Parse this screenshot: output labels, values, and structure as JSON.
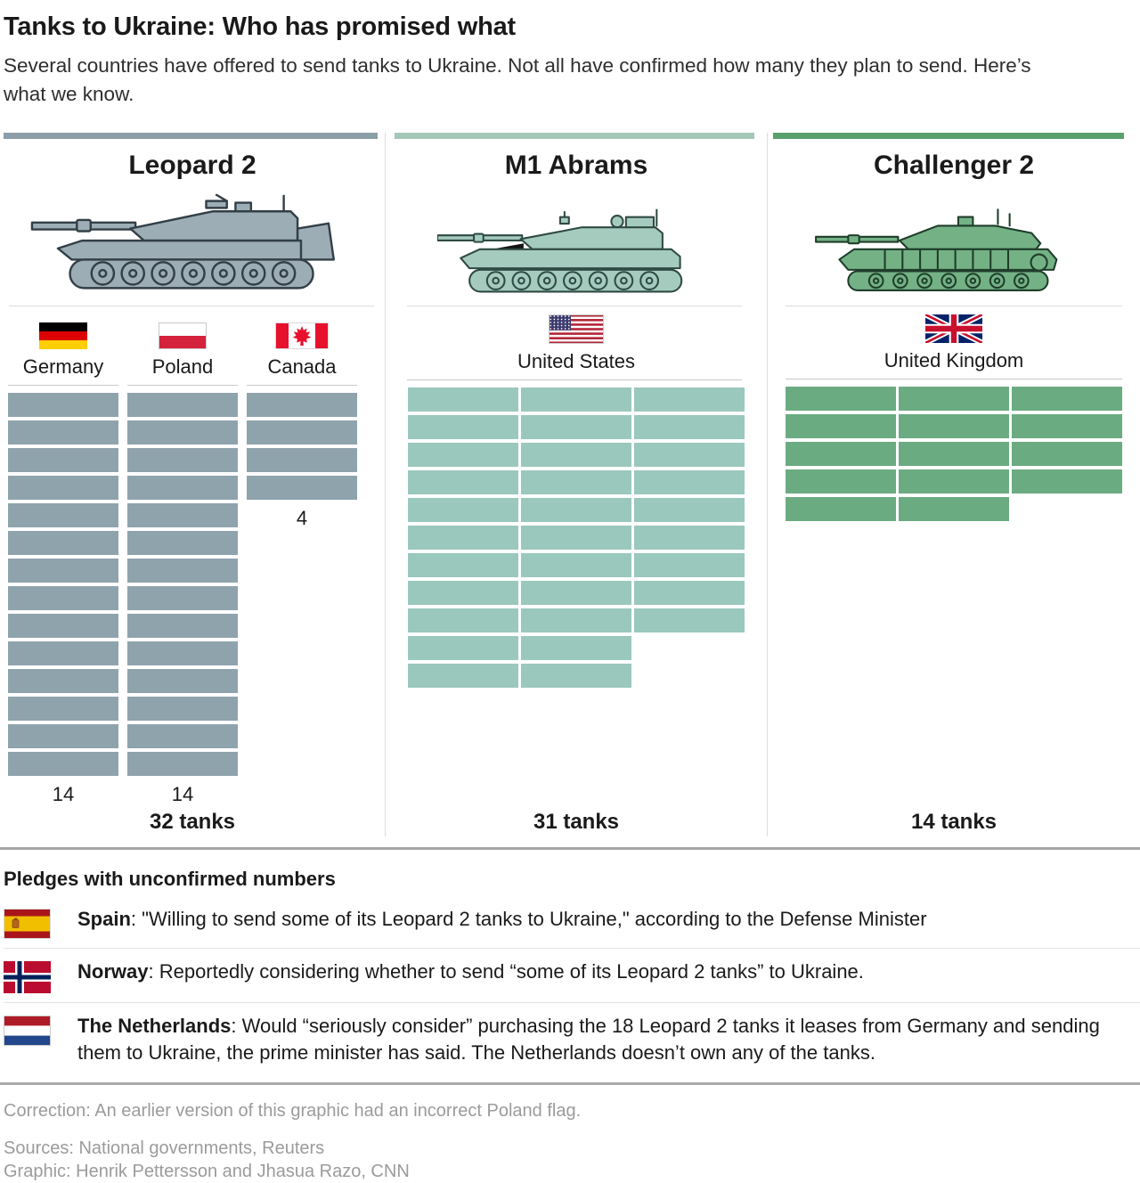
{
  "header": {
    "title": "Tanks to Ukraine: Who has promised what",
    "subtitle": "Several countries have offered to send tanks to Ukraine. Not all have confirmed how many they plan to send. Here’s what we know."
  },
  "chart_data": {
    "type": "bar",
    "title": "Tanks to Ukraine: Who has promised what",
    "note_visible_unit": "each rectangle drawn in the graphic represents one pledged tank",
    "groups": [
      {
        "tank": "Leopard 2",
        "total": 32,
        "total_label": "32 tanks",
        "accent_color": "#8c9ea8",
        "tile_color": "#8fa3ad",
        "tank_fill": "#9cadb5",
        "tank_stroke": "#333f47",
        "countries": [
          {
            "name": "Germany",
            "flag": "germany",
            "count": 14,
            "count_label": "14",
            "show_count": true
          },
          {
            "name": "Poland",
            "flag": "poland",
            "count": 14,
            "count_label": "14",
            "show_count": true
          },
          {
            "name": "Canada",
            "flag": "canada",
            "count": 4,
            "count_label": "4",
            "show_count": true
          }
        ]
      },
      {
        "tank": "M1 Abrams",
        "total": 31,
        "total_label": "31 tanks",
        "accent_color": "#a4c8b7",
        "tile_color": "#9ac8bc",
        "tank_fill": "#a5cbbf",
        "tank_stroke": "#2f4a43",
        "countries": [
          {
            "name": "United States",
            "flag": "us",
            "count": 31,
            "count_label": "31",
            "show_count": false
          }
        ]
      },
      {
        "tank": "Challenger 2",
        "total": 14,
        "total_label": "14 tanks",
        "accent_color": "#58a06e",
        "tile_color": "#6bab81",
        "tank_fill": "#74b286",
        "tank_stroke": "#1f3d2a",
        "countries": [
          {
            "name": "United Kingdom",
            "flag": "uk",
            "count": 14,
            "count_label": "14",
            "show_count": false
          }
        ]
      }
    ]
  },
  "pledges": {
    "heading": "Pledges with unconfirmed numbers",
    "items": [
      {
        "country": "Spain",
        "flag": "spain",
        "text": ": \"Willing to send some of its Leopard 2 tanks to Ukraine,\" according to the Defense Minister"
      },
      {
        "country": "Norway",
        "flag": "norway",
        "text": ": Reportedly considering whether to send “some of its Leopard 2 tanks” to Ukraine."
      },
      {
        "country": "The Netherlands",
        "flag": "netherlands",
        "text": ": Would “seriously consider” purchasing the 18 Leopard 2 tanks it leases from Germany and sending them to Ukraine, the prime minister has said. The Netherlands doesn’t own any of the tanks."
      }
    ]
  },
  "footer": {
    "correction": "Correction: An earlier version of this graphic had an incorrect Poland flag.",
    "sources": "Sources: National governments, Reuters",
    "credit": "Graphic: Henrik Pettersson and Jhasua Razo, CNN"
  }
}
